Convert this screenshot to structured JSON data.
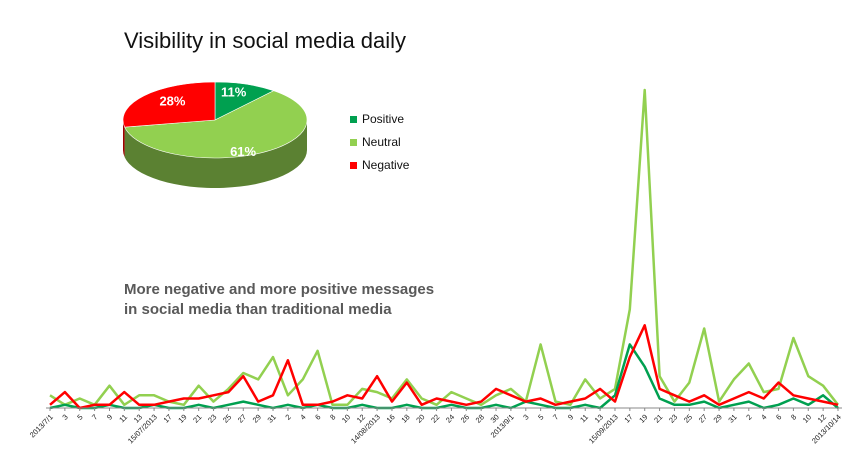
{
  "chart_data": [
    {
      "type": "pie",
      "title": "Visibility in social media daily",
      "categories": [
        "Positive",
        "Neutral",
        "Negative"
      ],
      "values": [
        11,
        61,
        28
      ],
      "value_labels": [
        "11%",
        "61%",
        "28%"
      ],
      "colors": [
        "#00a050",
        "#92d050",
        "#ff0000"
      ],
      "legend": "right"
    },
    {
      "type": "line",
      "annotation": [
        "More negative and more positive messages",
        "in social media than traditional media"
      ],
      "categories": [
        "2013/7/1",
        "3",
        "5",
        "7",
        "9",
        "11",
        "13",
        "15/07/2013",
        "17",
        "19",
        "21",
        "23",
        "25",
        "27",
        "29",
        "31",
        "2",
        "4",
        "6",
        "8",
        "10",
        "12",
        "14/08/2013",
        "16",
        "18",
        "20",
        "22",
        "24",
        "26",
        "28",
        "30",
        "2013/9/1",
        "3",
        "5",
        "7",
        "9",
        "11",
        "13",
        "15/09/2013",
        "17",
        "19",
        "21",
        "23",
        "25",
        "27",
        "29",
        "31",
        "2",
        "4",
        "6",
        "8",
        "10",
        "12",
        "2013/10/14"
      ],
      "ylim": [
        0,
        100
      ],
      "series": [
        {
          "name": "Neutral",
          "color": "#92d050",
          "values": [
            4,
            1,
            3,
            1,
            7,
            1,
            4,
            4,
            2,
            1,
            7,
            2,
            6,
            11,
            9,
            16,
            4,
            9,
            18,
            1,
            1,
            6,
            5,
            3,
            9,
            3,
            1,
            5,
            3,
            1,
            4,
            6,
            2,
            20,
            2,
            1,
            9,
            3,
            6,
            31,
            100,
            10,
            2,
            8,
            25,
            2,
            9,
            14,
            5,
            6,
            22,
            10,
            7,
            1
          ]
        },
        {
          "name": "Positive",
          "color": "#00a050",
          "values": [
            0,
            1,
            0,
            0,
            1,
            0,
            0,
            1,
            0,
            0,
            1,
            0,
            1,
            2,
            1,
            0,
            1,
            0,
            1,
            0,
            0,
            1,
            0,
            0,
            1,
            0,
            0,
            1,
            0,
            0,
            1,
            0,
            2,
            1,
            0,
            0,
            1,
            0,
            4,
            20,
            13,
            3,
            1,
            1,
            2,
            0,
            1,
            2,
            0,
            1,
            3,
            1,
            4,
            0
          ]
        },
        {
          "name": "Negative",
          "color": "#ff0000",
          "values": [
            1,
            5,
            0,
            1,
            1,
            5,
            1,
            1,
            2,
            3,
            3,
            4,
            5,
            10,
            2,
            4,
            15,
            1,
            1,
            2,
            4,
            3,
            10,
            2,
            8,
            1,
            3,
            2,
            1,
            2,
            6,
            4,
            2,
            3,
            1,
            2,
            3,
            6,
            2,
            16,
            26,
            6,
            4,
            2,
            4,
            1,
            3,
            5,
            3,
            8,
            4,
            3,
            2,
            1
          ]
        }
      ]
    }
  ]
}
